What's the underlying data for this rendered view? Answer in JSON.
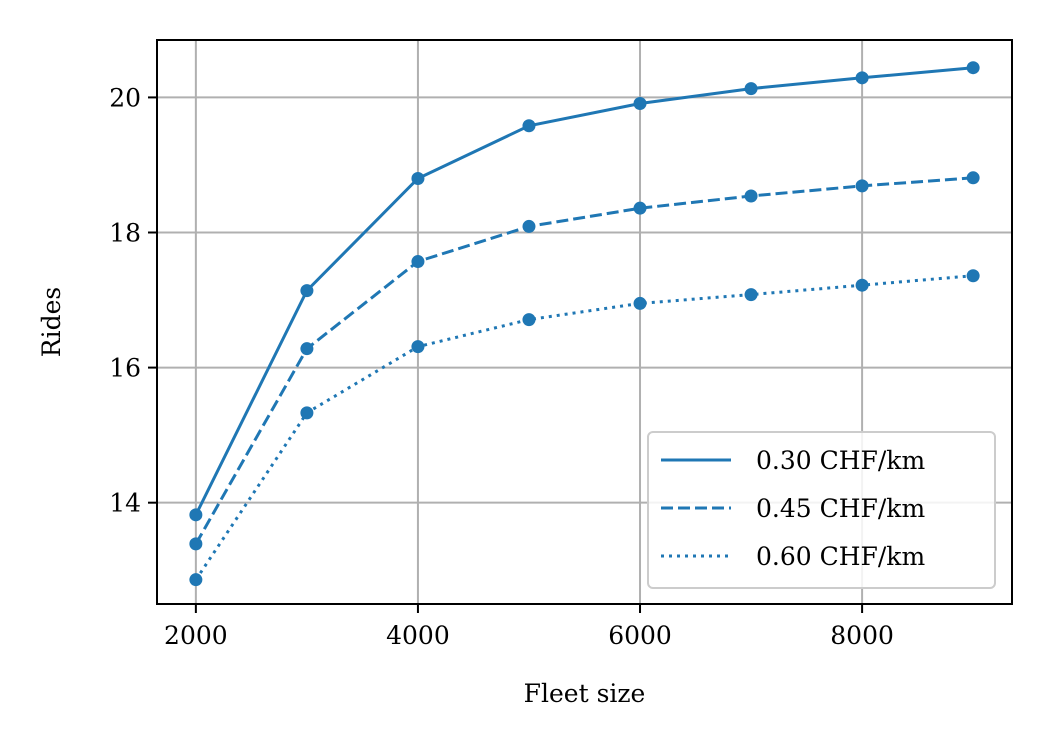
{
  "chart_data": {
    "type": "line",
    "xlabel": "Fleet size",
    "ylabel": "Rides",
    "x": [
      2000,
      3000,
      4000,
      5000,
      6000,
      7000,
      8000,
      9000
    ],
    "xlim": [
      1650,
      9350
    ],
    "ylim": [
      12.5,
      20.85
    ],
    "xticks": [
      2000,
      4000,
      6000,
      8000
    ],
    "yticks": [
      14,
      16,
      18,
      20
    ],
    "grid": true,
    "legend_position": "lower-right",
    "color": "#1f77b4",
    "series": [
      {
        "name": "0.30 CHF/km",
        "linestyle": "solid",
        "values": [
          13.82,
          17.14,
          18.8,
          19.58,
          19.91,
          20.13,
          20.29,
          20.44
        ]
      },
      {
        "name": "0.45 CHF/km",
        "linestyle": "dashed",
        "values": [
          13.39,
          16.28,
          17.57,
          18.09,
          18.36,
          18.54,
          18.69,
          18.81
        ]
      },
      {
        "name": "0.60 CHF/km",
        "linestyle": "dotted",
        "values": [
          12.86,
          15.33,
          16.31,
          16.71,
          16.95,
          17.08,
          17.22,
          17.36
        ]
      }
    ]
  }
}
